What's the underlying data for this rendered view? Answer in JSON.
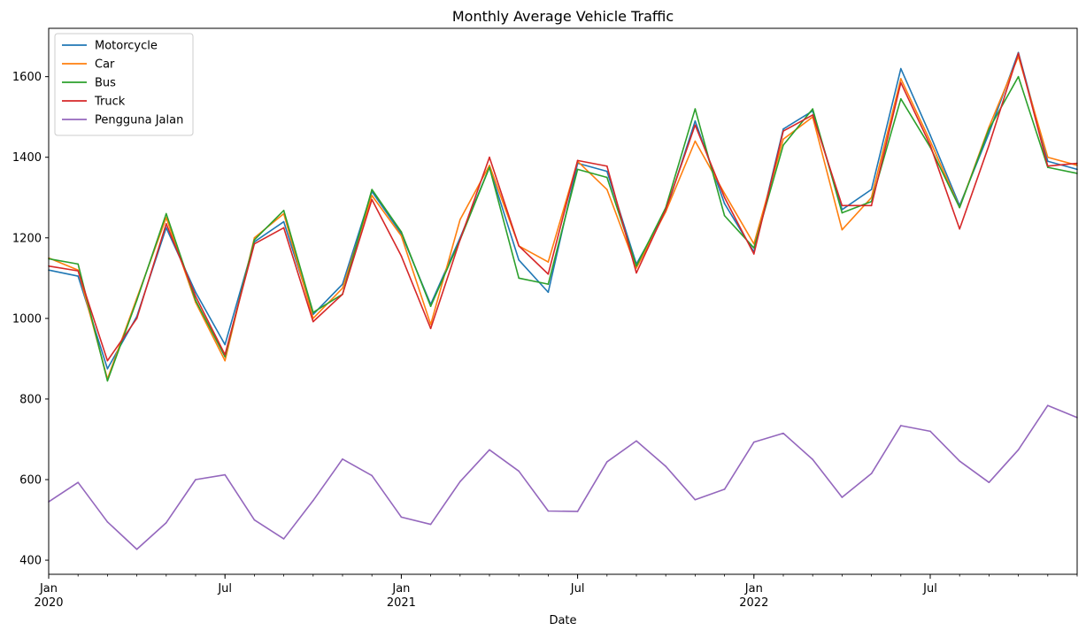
{
  "chart_data": {
    "type": "line",
    "title": "Monthly Average Vehicle Traffic",
    "xlabel": "Date",
    "ylabel": "",
    "x": [
      "2020-01",
      "2020-02",
      "2020-03",
      "2020-04",
      "2020-05",
      "2020-06",
      "2020-07",
      "2020-08",
      "2020-09",
      "2020-10",
      "2020-11",
      "2020-12",
      "2021-01",
      "2021-02",
      "2021-03",
      "2021-04",
      "2021-05",
      "2021-06",
      "2021-07",
      "2021-08",
      "2021-09",
      "2021-10",
      "2021-11",
      "2021-12",
      "2022-01",
      "2022-02",
      "2022-03",
      "2022-04",
      "2022-05",
      "2022-06",
      "2022-07",
      "2022-08",
      "2022-09",
      "2022-10",
      "2022-11",
      "2022-12"
    ],
    "xlim": [
      "2020-01",
      "2022-12"
    ],
    "ylim": [
      365,
      1720
    ],
    "yticks": [
      400,
      600,
      800,
      1000,
      1200,
      1400,
      1600
    ],
    "xticks": [
      {
        "x": "2020-01",
        "label": "Jan",
        "sublabel": "2020"
      },
      {
        "x": "2020-07",
        "label": "Jul",
        "sublabel": ""
      },
      {
        "x": "2021-01",
        "label": "Jan",
        "sublabel": "2021"
      },
      {
        "x": "2021-07",
        "label": "Jul",
        "sublabel": ""
      },
      {
        "x": "2022-01",
        "label": "Jan",
        "sublabel": "2022"
      },
      {
        "x": "2022-07",
        "label": "Jul",
        "sublabel": ""
      }
    ],
    "grid": false,
    "legend_position": "top-left",
    "series": [
      {
        "name": "Motorcycle",
        "color": "#1f77b4",
        "values": [
          1120,
          1105,
          875,
          1005,
          1225,
          1065,
          935,
          1190,
          1240,
          1010,
          1085,
          1315,
          1210,
          1035,
          1200,
          1375,
          1145,
          1065,
          1385,
          1365,
          1135,
          1265,
          1490,
          1285,
          1165,
          1470,
          1515,
          1270,
          1320,
          1620,
          1455,
          1280,
          1460,
          1660,
          1390,
          1370
        ]
      },
      {
        "name": "Car",
        "color": "#ff7f0e",
        "values": [
          1150,
          1120,
          850,
          1050,
          1250,
          1040,
          895,
          1200,
          1260,
          1000,
          1075,
          1305,
          1205,
          985,
          1245,
          1380,
          1180,
          1140,
          1390,
          1320,
          1125,
          1265,
          1440,
          1310,
          1185,
          1445,
          1500,
          1220,
          1300,
          1595,
          1440,
          1275,
          1475,
          1650,
          1400,
          1380
        ]
      },
      {
        "name": "Bus",
        "color": "#2ca02c",
        "values": [
          1148,
          1135,
          845,
          1045,
          1260,
          1045,
          905,
          1195,
          1268,
          1015,
          1060,
          1320,
          1215,
          1030,
          1195,
          1375,
          1100,
          1085,
          1370,
          1350,
          1130,
          1275,
          1520,
          1255,
          1175,
          1430,
          1520,
          1262,
          1290,
          1545,
          1425,
          1275,
          1470,
          1600,
          1375,
          1360
        ]
      },
      {
        "name": "Truck",
        "color": "#d62728",
        "values": [
          1130,
          1118,
          895,
          1000,
          1235,
          1055,
          910,
          1185,
          1225,
          992,
          1060,
          1295,
          1155,
          975,
          1195,
          1400,
          1180,
          1110,
          1392,
          1378,
          1113,
          1270,
          1480,
          1300,
          1160,
          1465,
          1505,
          1280,
          1280,
          1585,
          1430,
          1222,
          1430,
          1658,
          1378,
          1385
        ]
      },
      {
        "name": "Pengguna Jalan",
        "color": "#9467bd",
        "values": [
          545,
          593,
          495,
          427,
          493,
          600,
          612,
          500,
          453,
          548,
          651,
          610,
          507,
          489,
          595,
          674,
          621,
          522,
          521,
          644,
          696,
          633,
          550,
          576,
          693,
          715,
          650,
          556,
          615,
          734,
          720,
          646,
          593,
          674,
          784,
          754
        ]
      }
    ]
  }
}
